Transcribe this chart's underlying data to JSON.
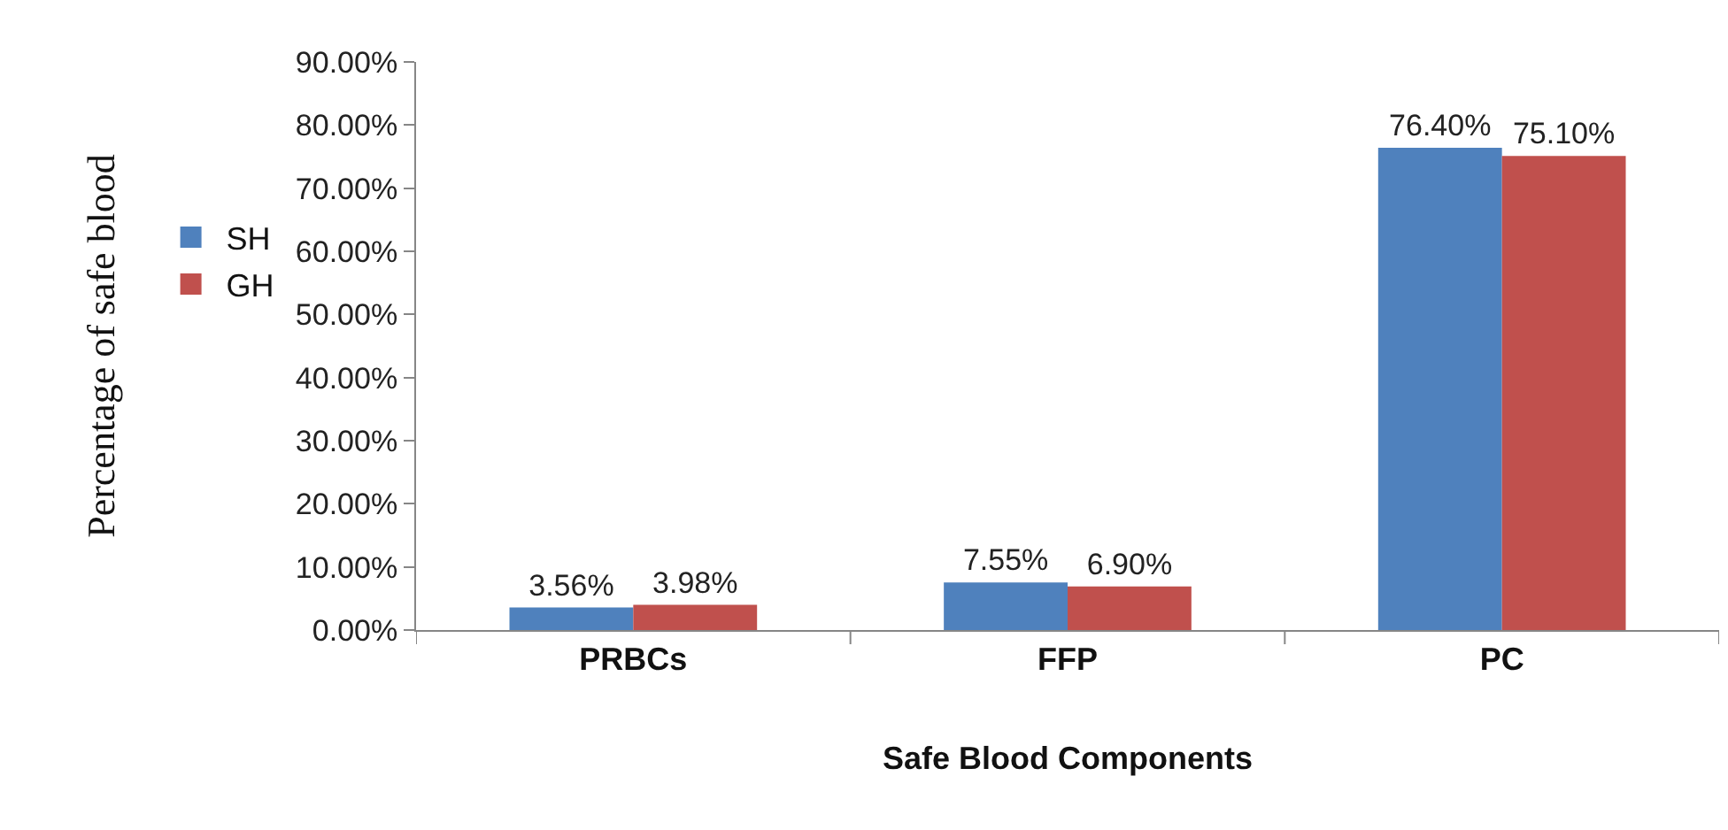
{
  "chart_data": {
    "type": "bar",
    "xlabel": "Safe Blood Components",
    "ylabel": "Percentage of safe blood",
    "categories": [
      "PRBCs",
      "FFP",
      "PC"
    ],
    "series": [
      {
        "name": "SH",
        "color": "#4f81bd",
        "values": [
          3.56,
          7.55,
          76.4
        ],
        "value_labels": [
          "3.56%",
          "7.55%",
          "76.40%"
        ]
      },
      {
        "name": "GH",
        "color": "#c0504d",
        "values": [
          3.98,
          6.9,
          75.1
        ],
        "value_labels": [
          "3.98%",
          "6.90%",
          "75.10%"
        ]
      }
    ],
    "ylim": [
      0,
      90
    ],
    "yticks": [
      {
        "value": 0,
        "label": "0.00%"
      },
      {
        "value": 10,
        "label": "10.00%"
      },
      {
        "value": 20,
        "label": "20.00%"
      },
      {
        "value": 30,
        "label": "30.00%"
      },
      {
        "value": 40,
        "label": "40.00%"
      },
      {
        "value": 50,
        "label": "50.00%"
      },
      {
        "value": 60,
        "label": "60.00%"
      },
      {
        "value": 70,
        "label": "70.00%"
      },
      {
        "value": 80,
        "label": "80.00%"
      },
      {
        "value": 90,
        "label": "90.00%"
      }
    ],
    "legend": "left"
  }
}
